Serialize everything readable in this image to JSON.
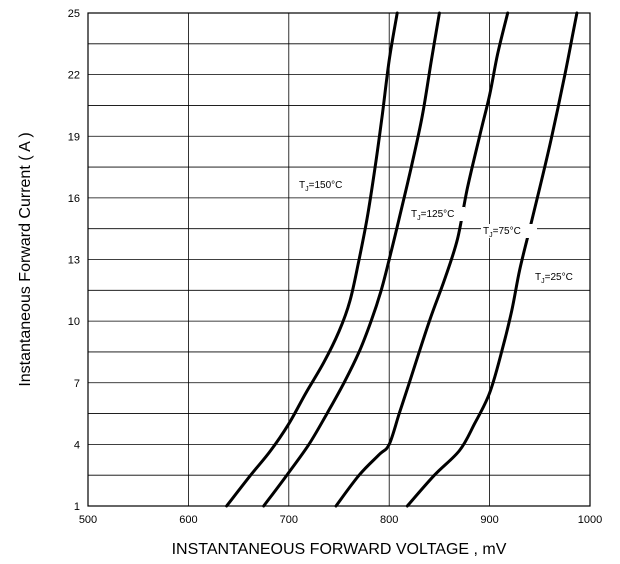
{
  "chart_data": {
    "type": "line",
    "title": "",
    "xlabel": "INSTANTANEOUS FORWARD VOLTAGE , mV",
    "ylabel": "Instantaneous Forward Current ( A )",
    "xlim": [
      500,
      1000
    ],
    "ylim": [
      1,
      25
    ],
    "x_ticks": [
      500,
      600,
      700,
      800,
      900,
      1000
    ],
    "y_ticks": [
      1,
      4,
      7,
      10,
      13,
      16,
      19,
      22,
      25
    ],
    "y_minor_step": 1.5,
    "grid": true,
    "legend": "none",
    "line_color": "#000000",
    "series": [
      {
        "name": "TJ=150°C",
        "label": {
          "prefix": "T",
          "sub": "J",
          "suffix": "=150°C"
        },
        "points": [
          [
            638,
            1
          ],
          [
            662,
            2.5
          ],
          [
            682,
            3.7
          ],
          [
            700,
            5
          ],
          [
            717,
            6.5
          ],
          [
            735,
            8
          ],
          [
            750,
            9.5
          ],
          [
            761,
            11
          ],
          [
            770,
            13
          ],
          [
            778,
            15
          ],
          [
            786,
            17.5
          ],
          [
            793,
            20
          ],
          [
            800,
            22.7
          ],
          [
            808,
            25
          ]
        ]
      },
      {
        "name": "TJ=125°C",
        "label": {
          "prefix": "T",
          "sub": "J",
          "suffix": "=125°C"
        },
        "points": [
          [
            675,
            1
          ],
          [
            698,
            2.5
          ],
          [
            720,
            4
          ],
          [
            738,
            5.5
          ],
          [
            755,
            7
          ],
          [
            770,
            8.5
          ],
          [
            782,
            10
          ],
          [
            792,
            11.5
          ],
          [
            800,
            13
          ],
          [
            810,
            15
          ],
          [
            822,
            17.5
          ],
          [
            833,
            20
          ],
          [
            842,
            22.7
          ],
          [
            850,
            25
          ]
        ]
      },
      {
        "name": "TJ=75°C",
        "label": {
          "prefix": "T",
          "sub": "J",
          "suffix": "=75°C"
        },
        "points": [
          [
            747,
            1
          ],
          [
            770,
            2.5
          ],
          [
            790,
            3.5
          ],
          [
            800,
            4
          ],
          [
            810,
            5.5
          ],
          [
            820,
            7
          ],
          [
            840,
            10
          ],
          [
            855,
            12
          ],
          [
            868,
            14
          ],
          [
            878,
            16.5
          ],
          [
            890,
            19
          ],
          [
            900,
            21
          ],
          [
            908,
            23
          ],
          [
            918,
            25
          ]
        ]
      },
      {
        "name": "TJ=25°C",
        "label": {
          "prefix": "T",
          "sub": "J",
          "suffix": "=25°C"
        },
        "points": [
          [
            818,
            1
          ],
          [
            845,
            2.5
          ],
          [
            870,
            3.7
          ],
          [
            885,
            5
          ],
          [
            900,
            6.5
          ],
          [
            912,
            8.5
          ],
          [
            922,
            10.5
          ],
          [
            930,
            12.5
          ],
          [
            940,
            14.5
          ],
          [
            950,
            16.5
          ],
          [
            962,
            19
          ],
          [
            975,
            22
          ],
          [
            983,
            24
          ],
          [
            987,
            25
          ]
        ]
      }
    ]
  }
}
